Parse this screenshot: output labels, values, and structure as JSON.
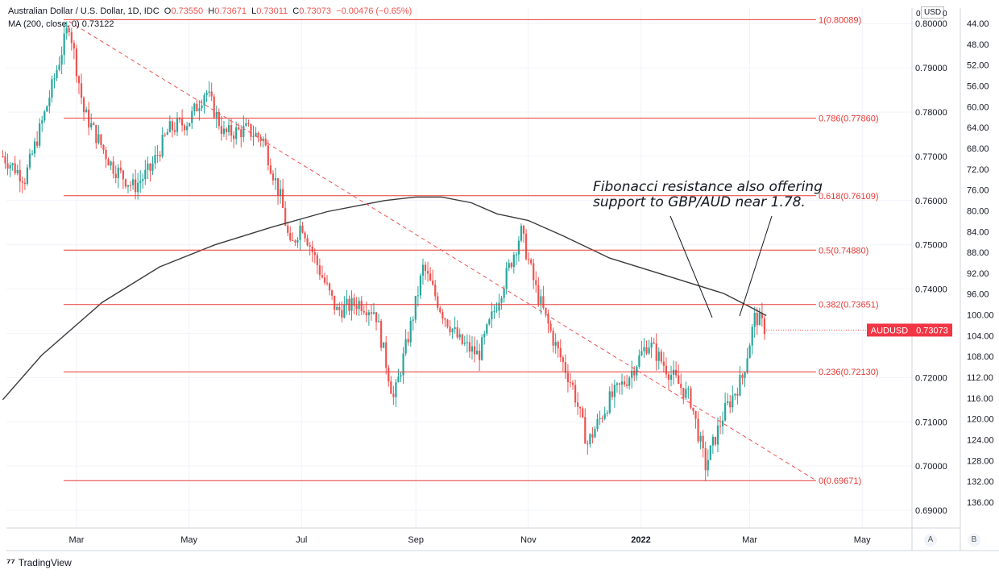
{
  "header": {
    "symbol": "Australian Dollar / U.S. Dollar, 1D, IDC",
    "o_label": "O",
    "o_value": "0.73550",
    "h_label": "H",
    "h_value": "0.73671",
    "l_label": "L",
    "l_value": "0.73011",
    "c_label": "C",
    "c_value": "0.73073",
    "change": "−0.00476 (−0.65%)",
    "ma_label": "MA (200, close, 0)",
    "ma_value": "0.73122"
  },
  "scale": {
    "currency": "USD",
    "corner_left": "0",
    "corner_right": "0"
  },
  "price_tag": {
    "label": "AUDUSD",
    "value": "0.73073"
  },
  "annotation": {
    "line1": "Fibonacci resistance also offering",
    "line2": "support to GBP/AUD near 1.78."
  },
  "footer": {
    "brand": "TradingView",
    "btn_a": "A",
    "btn_b": "B"
  },
  "colors": {
    "up": "#26a69a",
    "down": "#ef5350",
    "fib": "#e53935",
    "ma": "#3a3a3a",
    "trend": "#ef5350",
    "tag": "#f23645"
  },
  "chart_data": {
    "type": "candlestick",
    "ylim": [
      0.686,
      0.8035
    ],
    "y_ticks": [
      "0.69000",
      "0.70000",
      "0.71000",
      "0.72000",
      "0.73000",
      "0.74000",
      "0.75000",
      "0.76000",
      "0.77000",
      "0.78000",
      "0.79000",
      "0.80000"
    ],
    "y2_ticks": [
      "44.00",
      "48.00",
      "52.00",
      "56.00",
      "60.00",
      "64.00",
      "68.00",
      "72.00",
      "76.00",
      "80.00",
      "84.00",
      "88.00",
      "92.00",
      "96.00",
      "100.00",
      "104.00",
      "108.00",
      "112.00",
      "116.00",
      "120.00",
      "124.00",
      "128.00",
      "132.00",
      "136.00"
    ],
    "x_labels": [
      {
        "label": "Mar",
        "date": "2021-03-01"
      },
      {
        "label": "May",
        "date": "2021-05-01"
      },
      {
        "label": "Jul",
        "date": "2021-07-01"
      },
      {
        "label": "Sep",
        "date": "2021-09-01"
      },
      {
        "label": "Nov",
        "date": "2021-11-01"
      },
      {
        "label": "2022",
        "date": "2022-01-01"
      },
      {
        "label": "Mar",
        "date": "2022-03-01"
      },
      {
        "label": "May",
        "date": "2022-05-01"
      }
    ],
    "fib_levels": [
      {
        "label": "1(0.80089)",
        "value": 0.80089
      },
      {
        "label": "0.786(0.77860)",
        "value": 0.7786
      },
      {
        "label": "0.618(0.76109)",
        "value": 0.76109
      },
      {
        "label": "0.5(0.74880)",
        "value": 0.7488
      },
      {
        "label": "0.382(0.73651)",
        "value": 0.73651
      },
      {
        "label": "0.236(0.72130)",
        "value": 0.7213
      },
      {
        "label": "0(0.69671)",
        "value": 0.69671
      }
    ],
    "trendline": {
      "x": [
        "2021-02-25",
        "2022-04-05"
      ],
      "y": [
        0.8005,
        0.697
      ]
    },
    "ma_series": {
      "x": [
        "2021-01-20",
        "2021-02-10",
        "2021-03-15",
        "2021-04-15",
        "2021-05-15",
        "2021-06-15",
        "2021-07-15",
        "2021-08-15",
        "2021-09-01",
        "2021-09-15",
        "2021-10-01",
        "2021-10-15",
        "2021-11-01",
        "2021-11-20",
        "2021-12-15",
        "2022-01-15",
        "2022-02-15",
        "2022-03-01",
        "2022-03-10"
      ],
      "y": [
        0.715,
        0.725,
        0.737,
        0.745,
        0.75,
        0.754,
        0.7575,
        0.76,
        0.7608,
        0.7608,
        0.7595,
        0.757,
        0.7555,
        0.752,
        0.747,
        0.743,
        0.739,
        0.736,
        0.734
      ]
    },
    "candle_path": {
      "x": [
        "2021-01-20",
        "2021-02-01",
        "2021-02-12",
        "2021-02-25",
        "2021-03-05",
        "2021-03-20",
        "2021-04-01",
        "2021-04-10",
        "2021-04-20",
        "2021-05-01",
        "2021-05-10",
        "2021-05-20",
        "2021-06-01",
        "2021-06-10",
        "2021-06-20",
        "2021-06-25",
        "2021-07-01",
        "2021-07-10",
        "2021-07-20",
        "2021-08-01",
        "2021-08-10",
        "2021-08-20",
        "2021-08-31",
        "2021-09-05",
        "2021-09-15",
        "2021-09-25",
        "2021-10-05",
        "2021-10-20",
        "2021-10-28",
        "2021-11-05",
        "2021-11-15",
        "2021-11-25",
        "2021-12-03",
        "2021-12-15",
        "2021-12-25",
        "2022-01-05",
        "2022-01-15",
        "2022-01-28",
        "2022-02-05",
        "2022-02-15",
        "2022-02-25",
        "2022-03-04",
        "2022-03-10"
      ],
      "y": [
        0.77,
        0.765,
        0.78,
        0.8,
        0.78,
        0.768,
        0.763,
        0.767,
        0.776,
        0.778,
        0.785,
        0.775,
        0.776,
        0.774,
        0.76,
        0.749,
        0.755,
        0.745,
        0.735,
        0.737,
        0.735,
        0.715,
        0.735,
        0.745,
        0.735,
        0.728,
        0.725,
        0.743,
        0.753,
        0.74,
        0.728,
        0.718,
        0.705,
        0.715,
        0.72,
        0.728,
        0.722,
        0.715,
        0.7,
        0.712,
        0.72,
        0.734,
        0.7307
      ]
    }
  }
}
